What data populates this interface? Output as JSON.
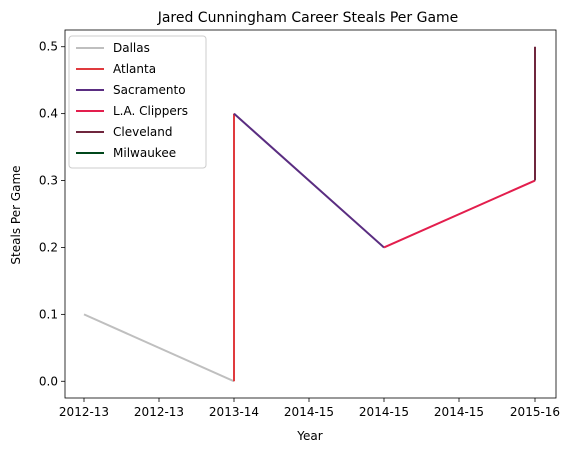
{
  "chart_data": {
    "type": "line",
    "title": "Jared Cunningham Career Steals Per Game",
    "xlabel": "Year",
    "ylabel": "Steals Per Game",
    "x_tick_labels": [
      "2012-13",
      "2012-13",
      "2013-14",
      "2014-15",
      "2014-15",
      "2014-15",
      "2015-16"
    ],
    "y_ticks": [
      0.0,
      0.1,
      0.2,
      0.3,
      0.4,
      0.5
    ],
    "y_tick_labels": [
      "0.0",
      "0.1",
      "0.2",
      "0.3",
      "0.4",
      "0.5"
    ],
    "xlim": [
      "2012-13",
      "2015-16"
    ],
    "ylim": [
      -0.025,
      0.525
    ],
    "grid": false,
    "legend_position": "upper-left",
    "series": [
      {
        "name": "Dallas",
        "color": "#bfbfbf",
        "points": [
          {
            "x": "2012-13",
            "y": 0.1
          },
          {
            "x": "2013-14",
            "y": 0.0
          }
        ]
      },
      {
        "name": "Atlanta",
        "color": "#e03a3e",
        "points": [
          {
            "x": "2013-14",
            "y": 0.0
          },
          {
            "x": "2013-14",
            "y": 0.4
          }
        ]
      },
      {
        "name": "Sacramento",
        "color": "#5a2d81",
        "points": [
          {
            "x": "2013-14",
            "y": 0.4
          },
          {
            "x": "2014-15",
            "y": 0.2
          }
        ]
      },
      {
        "name": "L.A. Clippers",
        "color": "#e31e4d",
        "points": [
          {
            "x": "2014-15",
            "y": 0.2
          },
          {
            "x": "2015-16",
            "y": 0.3
          }
        ]
      },
      {
        "name": "Cleveland",
        "color": "#6f263d",
        "points": [
          {
            "x": "2015-16",
            "y": 0.3
          },
          {
            "x": "2015-16",
            "y": 0.5
          }
        ]
      },
      {
        "name": "Milwaukee",
        "color": "#00471b",
        "points": [
          {
            "x": "2015-16",
            "y": 0.3
          },
          {
            "x": "2015-16",
            "y": 0.3
          }
        ]
      }
    ]
  }
}
